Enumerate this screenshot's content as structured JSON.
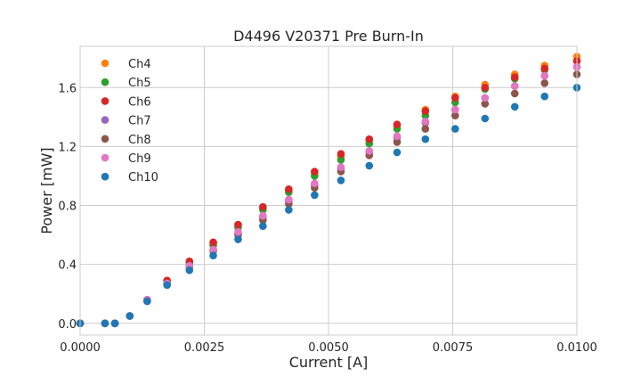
{
  "chart_data": {
    "type": "scatter",
    "title": "D4496 V20371 Pre Burn-In",
    "xlabel": "Current [A]",
    "ylabel": "Power [mW]",
    "xlim": [
      0,
      0.01
    ],
    "ylim": [
      -0.08,
      1.88
    ],
    "xticks": [
      0,
      0.0025,
      0.005,
      0.0075,
      0.01
    ],
    "xtick_labels": [
      "0.0000",
      "0.0025",
      "0.0050",
      "0.0075",
      "0.0100"
    ],
    "yticks": [
      0,
      0.4,
      0.8,
      1.2,
      1.6
    ],
    "ytick_labels": [
      "0.0",
      "0.4",
      "0.8",
      "1.2",
      "1.6"
    ],
    "grid": true,
    "legend_position": "top-left",
    "x": [
      0,
      0.0005,
      0.0007,
      0.001,
      0.00135,
      0.00175,
      0.0022,
      0.00268,
      0.00318,
      0.00368,
      0.0042,
      0.00472,
      0.00525,
      0.00582,
      0.00638,
      0.00695,
      0.00755,
      0.00815,
      0.00875,
      0.00935,
      0.01
    ],
    "series": [
      {
        "name": "Ch4",
        "color": "#ff7f0e",
        "values": [
          0,
          0,
          0,
          0.05,
          0.16,
          0.29,
          0.42,
          0.54,
          0.66,
          0.78,
          0.9,
          1.02,
          1.13,
          1.24,
          1.34,
          1.45,
          1.54,
          1.62,
          1.69,
          1.75,
          1.81
        ]
      },
      {
        "name": "Ch5",
        "color": "#2ca02c",
        "values": [
          0,
          0,
          0,
          0.05,
          0.16,
          0.28,
          0.41,
          0.53,
          0.65,
          0.77,
          0.89,
          1.0,
          1.11,
          1.22,
          1.32,
          1.41,
          1.5,
          1.59,
          1.66,
          1.72,
          1.78
        ]
      },
      {
        "name": "Ch6",
        "color": "#d62728",
        "values": [
          0,
          0,
          0,
          0.05,
          0.16,
          0.29,
          0.42,
          0.55,
          0.67,
          0.79,
          0.91,
          1.03,
          1.15,
          1.25,
          1.35,
          1.44,
          1.53,
          1.6,
          1.67,
          1.73,
          1.78
        ]
      },
      {
        "name": "Ch7",
        "color": "#9467bd",
        "values": [
          0,
          0,
          0,
          0.05,
          0.15,
          0.27,
          0.39,
          0.5,
          0.61,
          0.72,
          0.83,
          0.94,
          1.05,
          1.16,
          1.26,
          1.36,
          1.45,
          1.53,
          1.61,
          1.68,
          1.74
        ]
      },
      {
        "name": "Ch8",
        "color": "#8c564b",
        "values": [
          0,
          0,
          0,
          0.05,
          0.15,
          0.26,
          0.38,
          0.49,
          0.6,
          0.7,
          0.81,
          0.92,
          1.03,
          1.14,
          1.23,
          1.32,
          1.41,
          1.49,
          1.56,
          1.63,
          1.69
        ]
      },
      {
        "name": "Ch9",
        "color": "#e377c2",
        "values": [
          0,
          0,
          0,
          0.05,
          0.16,
          0.27,
          0.39,
          0.5,
          0.62,
          0.73,
          0.84,
          0.95,
          1.06,
          1.17,
          1.27,
          1.37,
          1.45,
          1.53,
          1.61,
          1.68,
          1.74
        ]
      },
      {
        "name": "Ch10",
        "color": "#1f77b4",
        "values": [
          0,
          0,
          0,
          0.05,
          0.15,
          0.26,
          0.36,
          0.46,
          0.57,
          0.66,
          0.77,
          0.87,
          0.97,
          1.07,
          1.16,
          1.25,
          1.32,
          1.39,
          1.47,
          1.54,
          1.6
        ]
      }
    ]
  }
}
